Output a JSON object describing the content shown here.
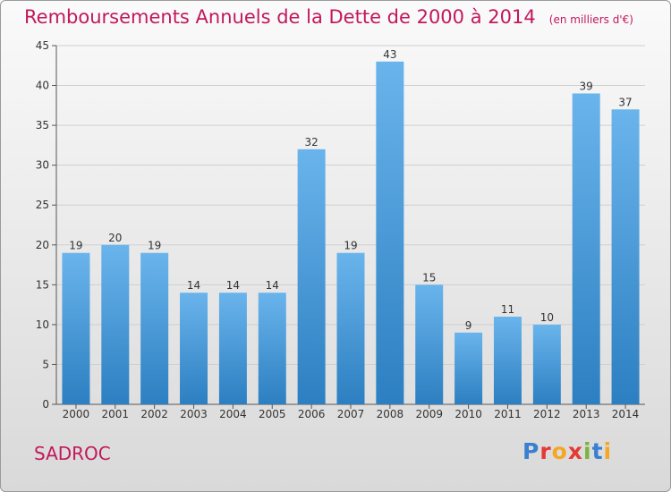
{
  "header": {
    "title": "Remboursements Annuels de la Dette de 2000 à 2014",
    "unit": "(en milliers d'€)"
  },
  "commune": "SADROC",
  "logo": {
    "text": "Proxiti",
    "colors": [
      "#3a7fd0",
      "#e53935",
      "#f5a623",
      "#e53935",
      "#7cb342",
      "#3a7fd0",
      "#f5a623"
    ]
  },
  "colors": {
    "bar_light": "#6ab4ec",
    "bar_dark": "#2c7fc1",
    "title": "#c2185b",
    "axis": "#555555",
    "grid": "#cfcfcf"
  },
  "chart_data": {
    "type": "bar",
    "categories": [
      "2000",
      "2001",
      "2002",
      "2003",
      "2004",
      "2005",
      "2006",
      "2007",
      "2008",
      "2009",
      "2010",
      "2011",
      "2012",
      "2013",
      "2014"
    ],
    "values": [
      19,
      20,
      19,
      14,
      14,
      14,
      32,
      19,
      43,
      15,
      9,
      11,
      10,
      39,
      37
    ],
    "ylim": [
      0,
      45
    ],
    "yticks": [
      0,
      5,
      10,
      15,
      20,
      25,
      30,
      35,
      40,
      45
    ],
    "grid": true,
    "data_labels": true
  }
}
